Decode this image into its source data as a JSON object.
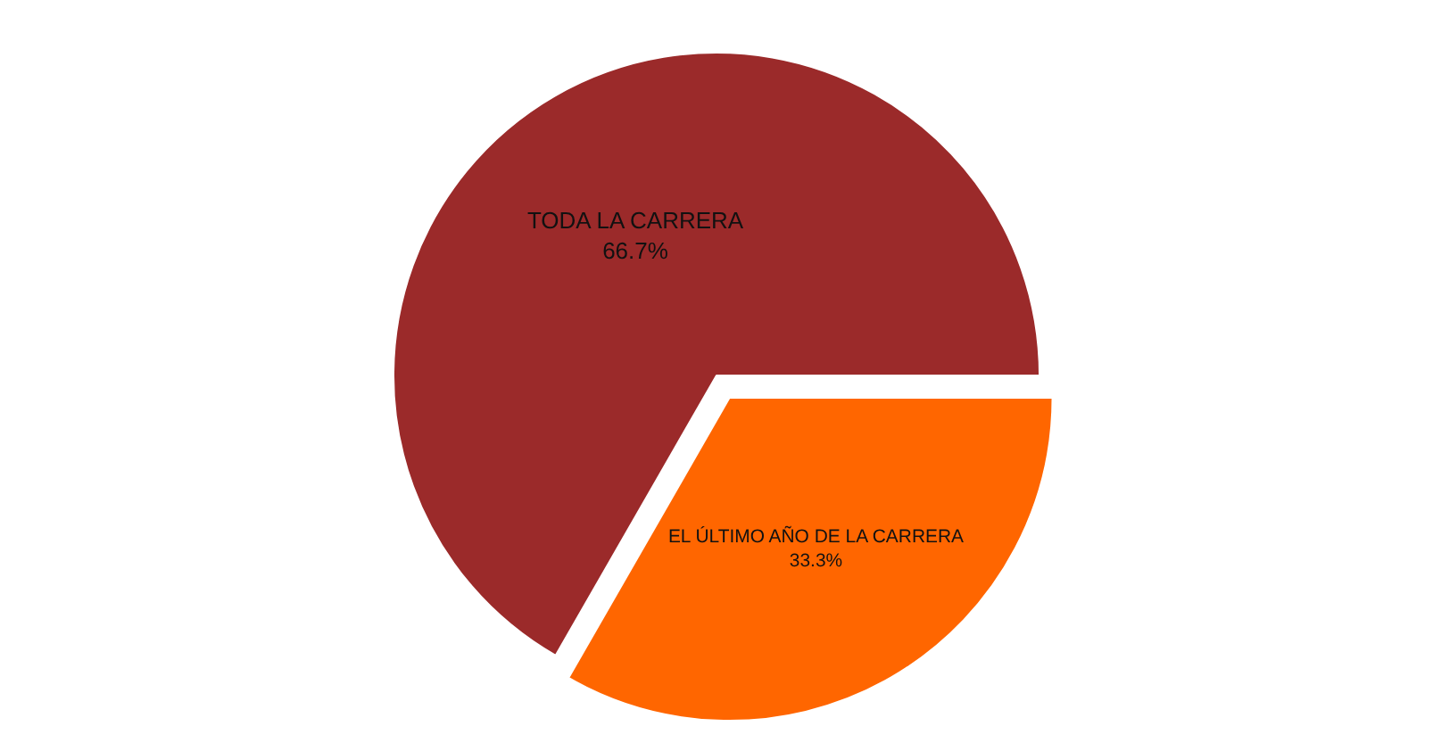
{
  "chart_data": {
    "type": "pie",
    "categories": [
      "EL ÚLTIMO AÑO DE LA CARRERA",
      "TODA LA CARRERA"
    ],
    "values": [
      33.3,
      66.7
    ],
    "value_labels": [
      "33.3%",
      "66.7%"
    ],
    "colors": [
      "#ff6600",
      "#9b2a2a"
    ],
    "legend": false
  }
}
